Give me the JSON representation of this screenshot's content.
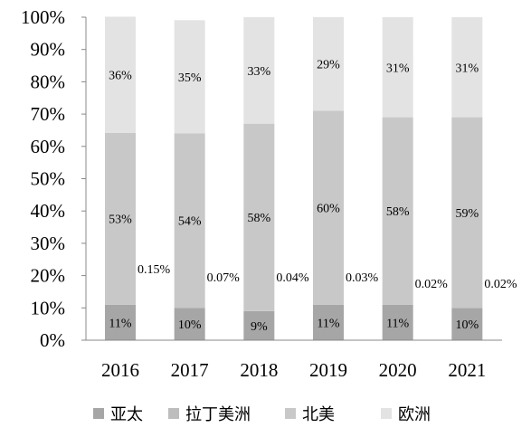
{
  "chart_data": {
    "type": "bar",
    "stacked": true,
    "percent": true,
    "categories": [
      "2016",
      "2017",
      "2018",
      "2019",
      "2020",
      "2021"
    ],
    "ylim": [
      0,
      100
    ],
    "yticks": [
      "0%",
      "10%",
      "20%",
      "30%",
      "40%",
      "50%",
      "60%",
      "70%",
      "80%",
      "90%",
      "100%"
    ],
    "grid": false,
    "legend_position": "bottom",
    "series": [
      {
        "name": "亚太",
        "color": "#a6a6a6",
        "values": [
          11,
          10,
          9,
          11,
          11,
          10
        ],
        "labels": [
          "11%",
          "10%",
          "9%",
          "11%",
          "11%",
          "10%"
        ]
      },
      {
        "name": "拉丁美洲",
        "color": "#bdbdbd",
        "values": [
          0.15,
          0.07,
          0.04,
          0.03,
          0.02,
          0.02
        ],
        "labels": [
          "0.15%",
          "0.07%",
          "0.04%",
          "0.03%",
          "0.02%",
          "0.02%"
        ]
      },
      {
        "name": "北美",
        "color": "#c8c8c8",
        "values": [
          53,
          54,
          58,
          60,
          58,
          59
        ],
        "labels": [
          "53%",
          "54%",
          "58%",
          "60%",
          "58%",
          "59%"
        ]
      },
      {
        "name": "欧洲",
        "color": "#e3e3e3",
        "values": [
          36,
          35,
          33,
          29,
          31,
          31
        ],
        "labels": [
          "36%",
          "35%",
          "33%",
          "29%",
          "31%",
          "31%"
        ]
      }
    ]
  }
}
